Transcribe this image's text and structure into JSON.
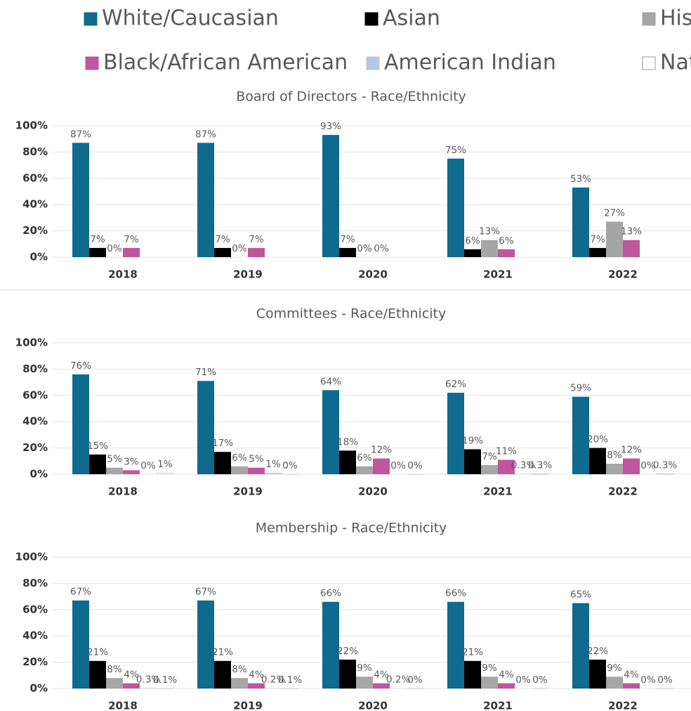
{
  "chart_data": [
    {
      "type": "bar",
      "title": "Board of Directors - Race/Ethnicity",
      "categories": [
        "2018",
        "2019",
        "2020",
        "2021",
        "2022"
      ],
      "ylim": [
        0,
        100
      ],
      "yticks": [
        {
          "value": 0,
          "label": "0%"
        },
        {
          "value": 20,
          "label": "20%"
        },
        {
          "value": 40,
          "label": "40%"
        },
        {
          "value": 60,
          "label": "60%"
        },
        {
          "value": 80,
          "label": "80%"
        },
        {
          "value": 100,
          "label": "100%"
        }
      ],
      "grid": true,
      "series": [
        {
          "name": "White/Caucasian",
          "color": "#0e6a8e",
          "values": [
            87,
            87,
            93,
            75,
            53
          ],
          "value_labels": [
            "87%",
            "87%",
            "93%",
            "75%",
            "53%"
          ]
        },
        {
          "name": "Asian",
          "color": "#000000",
          "values": [
            7,
            7,
            7,
            6,
            7
          ],
          "value_labels": [
            "7%",
            "7%",
            "7%",
            "6%",
            "7%"
          ]
        },
        {
          "name": "His",
          "color": "#a6a6a6",
          "values": [
            0,
            0,
            0,
            13,
            27
          ],
          "value_labels": [
            "0%",
            "0%",
            "0%",
            "13%",
            "27%"
          ]
        },
        {
          "name": "Black/African American",
          "color": "#c0569e",
          "values": [
            7,
            7,
            0,
            6,
            13
          ],
          "value_labels": [
            "7%",
            "7%",
            "0%",
            "6%",
            "13%"
          ]
        },
        {
          "name": "American Indian",
          "color": "#b4c7e7",
          "values": [
            null,
            null,
            null,
            null,
            null
          ],
          "value_labels": [
            null,
            null,
            null,
            null,
            null
          ]
        },
        {
          "name": "Nat",
          "color": "#ffffff",
          "values": [
            null,
            null,
            null,
            null,
            null
          ],
          "value_labels": [
            null,
            null,
            null,
            null,
            null
          ]
        }
      ]
    },
    {
      "type": "bar",
      "title": "Committees - Race/Ethnicity",
      "categories": [
        "2018",
        "2019",
        "2020",
        "2021",
        "2022"
      ],
      "ylim": [
        0,
        100
      ],
      "yticks": [
        {
          "value": 0,
          "label": "0%"
        },
        {
          "value": 20,
          "label": "20%"
        },
        {
          "value": 40,
          "label": "40%"
        },
        {
          "value": 60,
          "label": "60%"
        },
        {
          "value": 80,
          "label": "80%"
        },
        {
          "value": 100,
          "label": "100%"
        }
      ],
      "grid": true,
      "series": [
        {
          "color": "#0e6a8e",
          "values": [
            76,
            71,
            64,
            62,
            59
          ],
          "value_labels": [
            "76%",
            "71%",
            "64%",
            "62%",
            "59%"
          ]
        },
        {
          "color": "#000000",
          "values": [
            15,
            17,
            18,
            19,
            20
          ],
          "value_labels": [
            "15%",
            "17%",
            "18%",
            "19%",
            "20%"
          ]
        },
        {
          "color": "#a6a6a6",
          "values": [
            5,
            6,
            6,
            7,
            8
          ],
          "value_labels": [
            "5%",
            "6%",
            "6%",
            "7%",
            "8%"
          ]
        },
        {
          "color": "#c0569e",
          "values": [
            3,
            5,
            12,
            11,
            12
          ],
          "value_labels": [
            "3%",
            "5%",
            "12%",
            "11%",
            "12%"
          ]
        },
        {
          "color": "#b4c7e7",
          "values": [
            0,
            1,
            0,
            0.3,
            0
          ],
          "value_labels": [
            "0%",
            "1%",
            "0%",
            "0.3%",
            "0%"
          ]
        },
        {
          "color": "#ffffff",
          "values": [
            1,
            0,
            0,
            0.3,
            0.3
          ],
          "value_labels": [
            "1%",
            "0%",
            "0%",
            "0.3%",
            "0.3%"
          ]
        }
      ]
    },
    {
      "type": "bar",
      "title": "Membership - Race/Ethnicity",
      "categories": [
        "2018",
        "2019",
        "2020",
        "2021",
        "2022"
      ],
      "ylim": [
        0,
        100
      ],
      "yticks": [
        {
          "value": 0,
          "label": "0%"
        },
        {
          "value": 20,
          "label": "20%"
        },
        {
          "value": 40,
          "label": "40%"
        },
        {
          "value": 60,
          "label": "60%"
        },
        {
          "value": 80,
          "label": "80%"
        },
        {
          "value": 100,
          "label": "100%"
        }
      ],
      "grid": true,
      "series": [
        {
          "color": "#0e6a8e",
          "values": [
            67,
            67,
            66,
            66,
            65
          ],
          "value_labels": [
            "67%",
            "67%",
            "66%",
            "66%",
            "65%"
          ]
        },
        {
          "color": "#000000",
          "values": [
            21,
            21,
            22,
            21,
            22
          ],
          "value_labels": [
            "21%",
            "21%",
            "22%",
            "21%",
            "22%"
          ]
        },
        {
          "color": "#a6a6a6",
          "values": [
            8,
            8,
            9,
            9,
            9
          ],
          "value_labels": [
            "8%",
            "8%",
            "9%",
            "9%",
            "9%"
          ]
        },
        {
          "color": "#c0569e",
          "values": [
            4,
            4,
            4,
            4,
            4
          ],
          "value_labels": [
            "4%",
            "4%",
            "4%",
            "4%",
            "4%"
          ]
        },
        {
          "color": "#b4c7e7",
          "values": [
            0.3,
            0.2,
            0.2,
            0,
            0
          ],
          "value_labels": [
            "0.3%",
            "0.2%",
            "0.2%",
            "0%",
            "0%"
          ]
        },
        {
          "color": "#ffffff",
          "values": [
            0.1,
            0.1,
            0,
            0,
            0
          ],
          "value_labels": [
            "0.1%",
            "0.1%",
            "0%",
            "0%",
            "0%"
          ]
        }
      ]
    }
  ]
}
